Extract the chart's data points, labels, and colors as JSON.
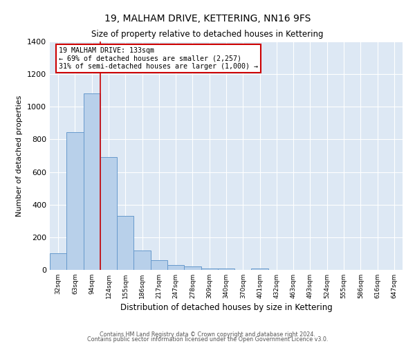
{
  "title": "19, MALHAM DRIVE, KETTERING, NN16 9FS",
  "subtitle": "Size of property relative to detached houses in Kettering",
  "xlabel": "Distribution of detached houses by size in Kettering",
  "ylabel": "Number of detached properties",
  "bar_labels": [
    "32sqm",
    "63sqm",
    "94sqm",
    "124sqm",
    "155sqm",
    "186sqm",
    "217sqm",
    "247sqm",
    "278sqm",
    "309sqm",
    "340sqm",
    "370sqm",
    "401sqm",
    "432sqm",
    "463sqm",
    "493sqm",
    "524sqm",
    "555sqm",
    "586sqm",
    "616sqm",
    "647sqm"
  ],
  "bar_values": [
    100,
    845,
    1080,
    690,
    330,
    120,
    60,
    30,
    20,
    10,
    10,
    0,
    10,
    0,
    0,
    0,
    0,
    0,
    0,
    0,
    0
  ],
  "bar_color": "#b8d0ea",
  "bar_edge_color": "#6699cc",
  "ylim": [
    0,
    1400
  ],
  "yticks": [
    0,
    200,
    400,
    600,
    800,
    1000,
    1200,
    1400
  ],
  "vline_color": "#cc0000",
  "annotation_title": "19 MALHAM DRIVE: 133sqm",
  "annotation_line1": "← 69% of detached houses are smaller (2,257)",
  "annotation_line2": "31% of semi-detached houses are larger (1,000) →",
  "annotation_box_color": "#ffffff",
  "annotation_box_edge_color": "#cc0000",
  "bg_color": "#dde8f4",
  "grid_color": "#ffffff",
  "footer_line1": "Contains HM Land Registry data © Crown copyright and database right 2024.",
  "footer_line2": "Contains public sector information licensed under the Open Government Licence v3.0."
}
